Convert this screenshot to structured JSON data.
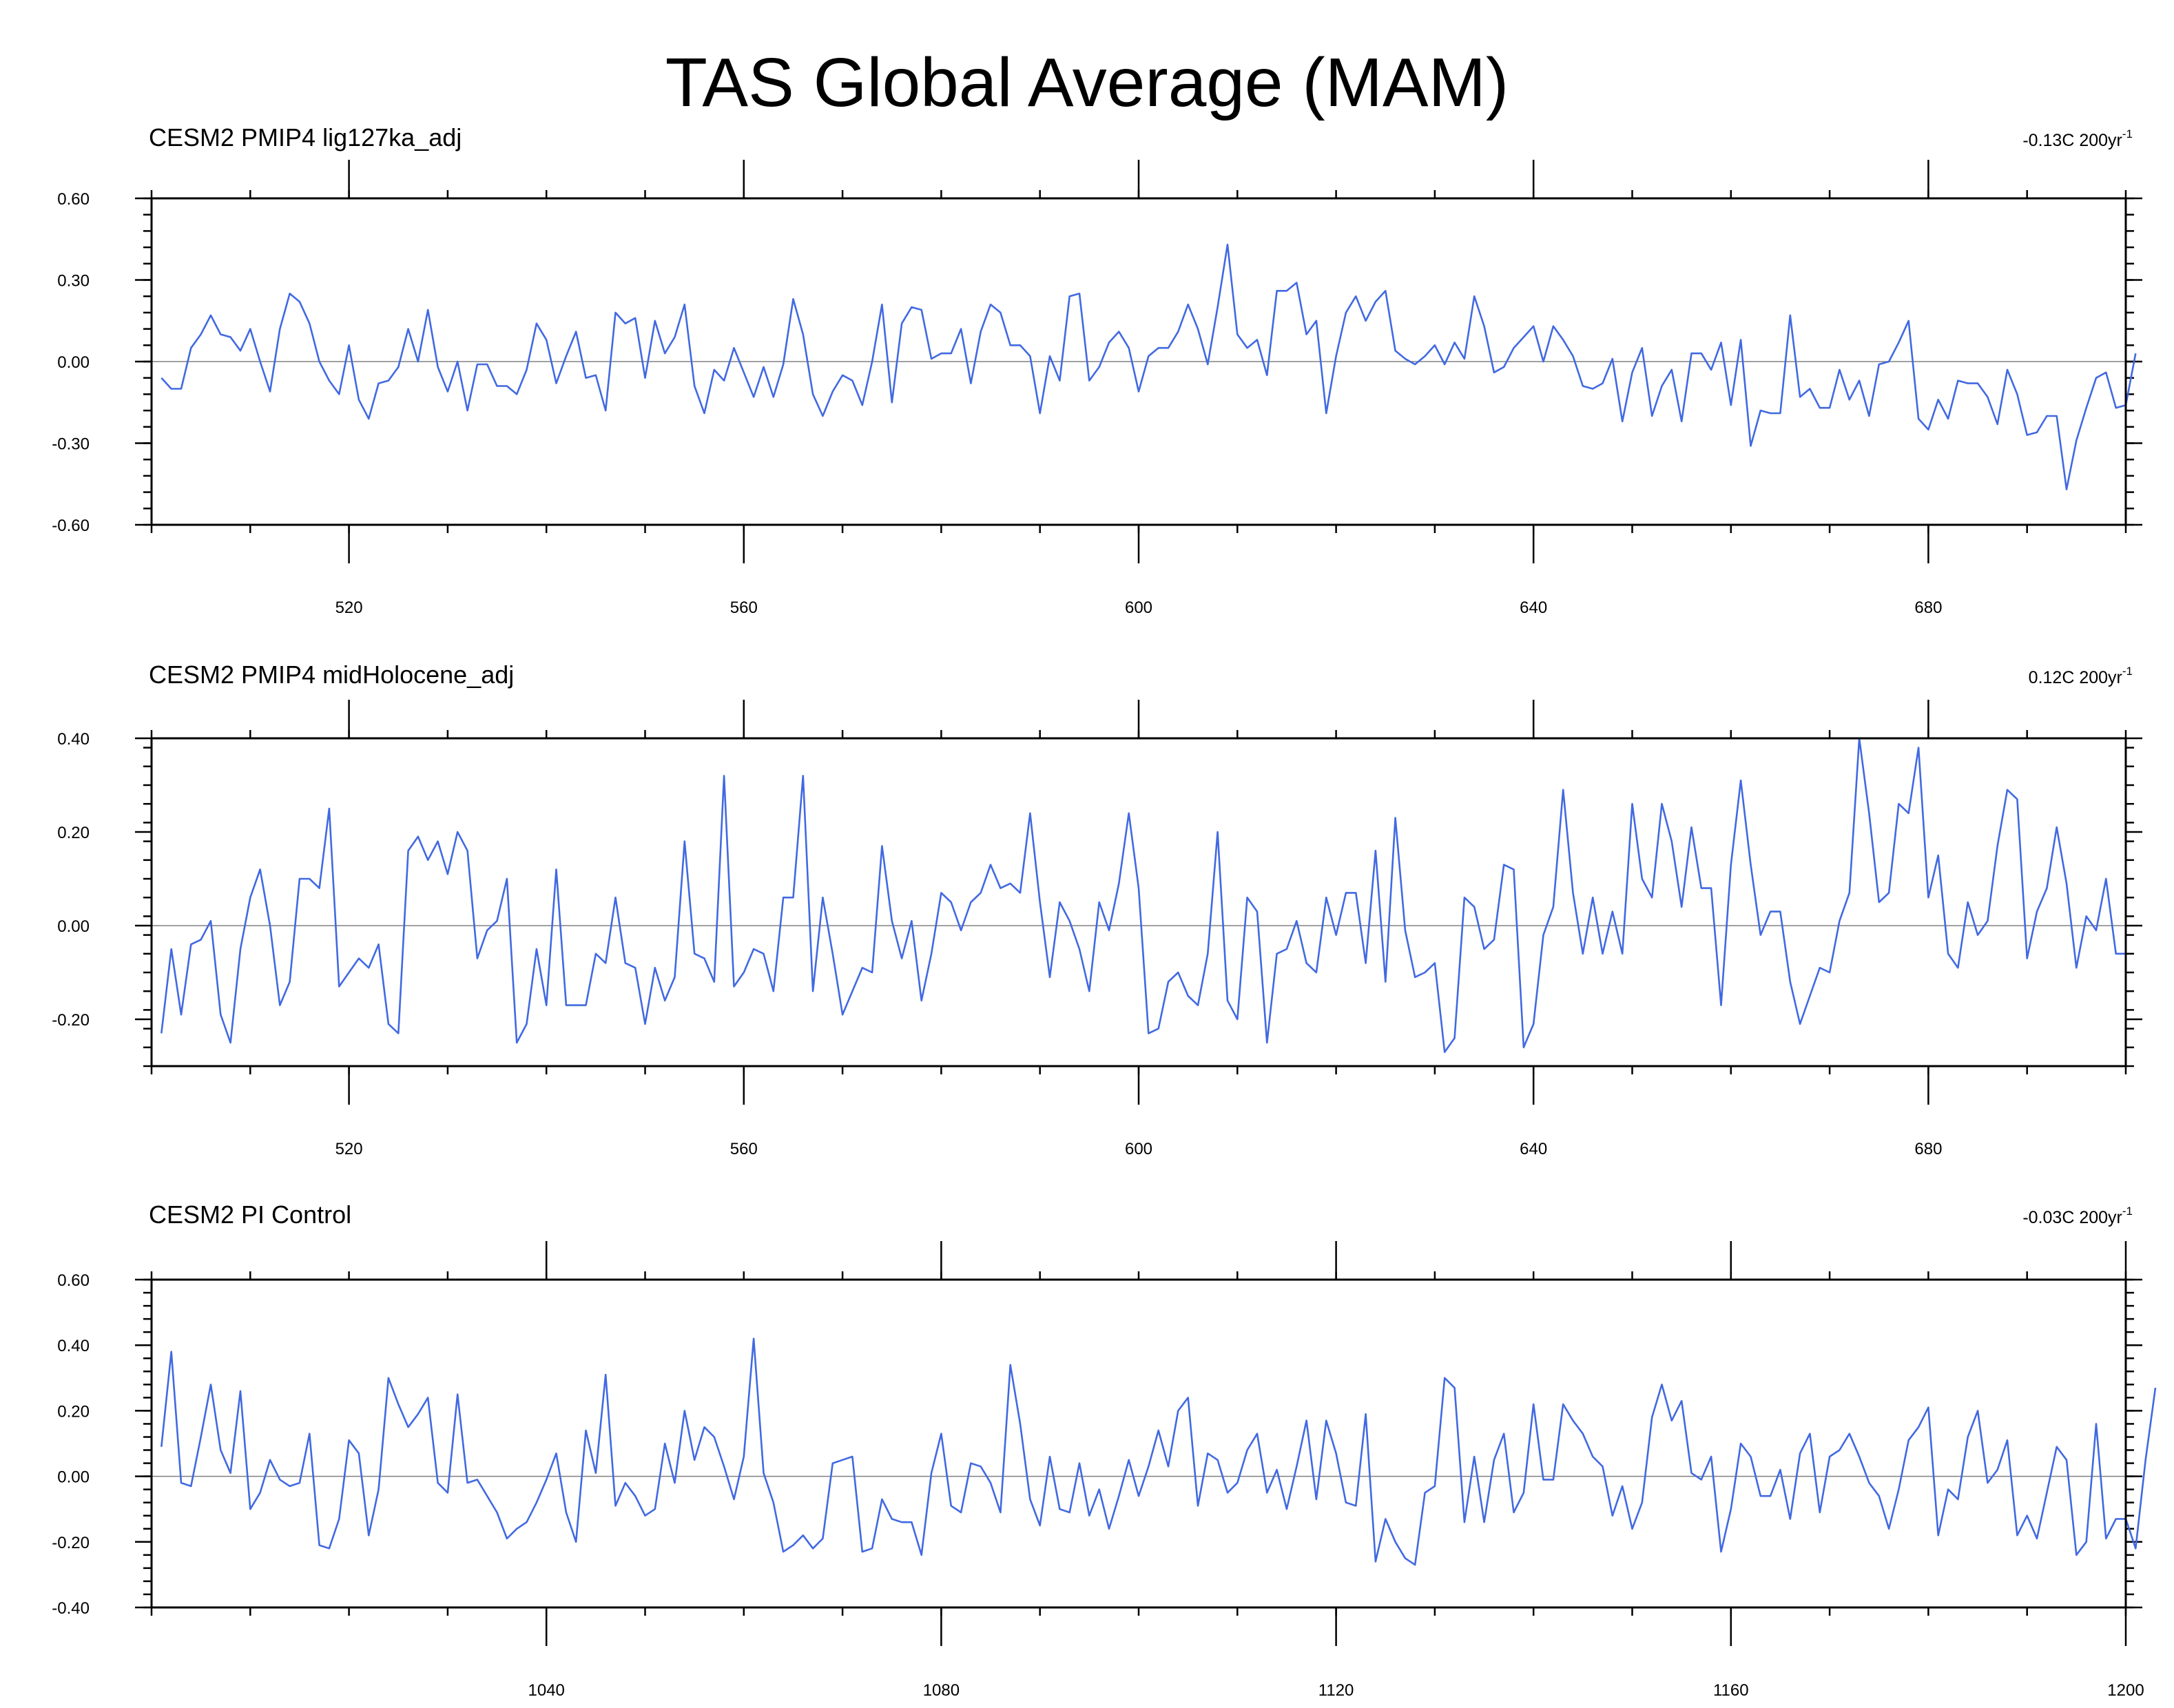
{
  "figure_title": "TAS Global Average (MAM)",
  "chart_data": [
    {
      "type": "line",
      "title": "CESM2 PMIP4 lig127ka_adj",
      "trend": {
        "prefix": "-0.13C 200yr",
        "sup": "-1"
      },
      "xlim": [
        500,
        700
      ],
      "ylim": [
        -0.6,
        0.6
      ],
      "yticks": [
        -0.6,
        -0.3,
        0.0,
        0.3,
        0.6
      ],
      "ytick_labels": [
        "-0.60",
        "-0.30",
        "0.00",
        "0.30",
        "0.60"
      ],
      "xticks": [
        520,
        560,
        600,
        640,
        680
      ],
      "xtick_labels": [
        "520",
        "560",
        "600",
        "640",
        "680"
      ],
      "series": [
        {
          "name": "lig127ka_adj",
          "color": "#4169e1",
          "x_start": 501,
          "x_step": 1,
          "values": [
            -0.06,
            -0.1,
            -0.1,
            0.05,
            0.1,
            0.17,
            0.1,
            0.09,
            0.04,
            0.12,
            0.0,
            -0.11,
            0.12,
            0.25,
            0.22,
            0.14,
            0.0,
            -0.07,
            -0.12,
            0.06,
            -0.14,
            -0.21,
            -0.08,
            -0.07,
            -0.02,
            0.12,
            0.0,
            0.19,
            -0.02,
            -0.11,
            0.0,
            -0.18,
            -0.01,
            -0.01,
            -0.09,
            -0.09,
            -0.12,
            -0.03,
            0.14,
            0.08,
            -0.08,
            0.02,
            0.11,
            -0.06,
            -0.05,
            -0.18,
            0.18,
            0.14,
            0.16,
            -0.06,
            0.15,
            0.03,
            0.09,
            0.21,
            -0.09,
            -0.19,
            -0.03,
            -0.07,
            0.05,
            -0.04,
            -0.13,
            -0.02,
            -0.13,
            -0.01,
            0.23,
            0.1,
            -0.12,
            -0.2,
            -0.11,
            -0.05,
            -0.07,
            -0.16,
            0.0,
            0.21,
            -0.15,
            0.14,
            0.2,
            0.19,
            0.01,
            0.03,
            0.03,
            0.12,
            -0.08,
            0.11,
            0.21,
            0.18,
            0.06,
            0.06,
            0.02,
            -0.19,
            0.02,
            -0.07,
            0.24,
            0.25,
            -0.07,
            -0.02,
            0.07,
            0.11,
            0.05,
            -0.11,
            0.02,
            0.05,
            0.05,
            0.11,
            0.21,
            0.12,
            -0.01,
            0.2,
            0.43,
            0.1,
            0.05,
            0.08,
            -0.05,
            0.26,
            0.26,
            0.29,
            0.1,
            0.15,
            -0.19,
            0.02,
            0.18,
            0.24,
            0.15,
            0.22,
            0.26,
            0.04,
            0.01,
            -0.01,
            0.02,
            0.06,
            -0.01,
            0.07,
            0.01,
            0.24,
            0.13,
            -0.04,
            -0.02,
            0.05,
            0.09,
            0.13,
            0.0,
            0.13,
            0.08,
            0.02,
            -0.09,
            -0.1,
            -0.08,
            0.01,
            -0.22,
            -0.04,
            0.05,
            -0.2,
            -0.09,
            -0.03,
            -0.22,
            0.03,
            0.03,
            -0.03,
            0.07,
            -0.16,
            0.08,
            -0.31,
            -0.18,
            -0.19,
            -0.19,
            0.17,
            -0.13,
            -0.1,
            -0.17,
            -0.17,
            -0.03,
            -0.14,
            -0.07,
            -0.2,
            -0.01,
            0.0,
            0.07,
            0.15,
            -0.21,
            -0.25,
            -0.14,
            -0.21,
            -0.07,
            -0.08,
            -0.08,
            -0.13,
            -0.23,
            -0.03,
            -0.12,
            -0.27,
            -0.26,
            -0.2,
            -0.2,
            -0.47,
            -0.29,
            -0.17,
            -0.06,
            -0.04,
            -0.17,
            -0.16,
            0.03
          ]
        }
      ]
    },
    {
      "type": "line",
      "title": "CESM2 PMIP4 midHolocene_adj",
      "trend": {
        "prefix": "0.12C 200yr",
        "sup": "-1"
      },
      "xlim": [
        500,
        700
      ],
      "ylim": [
        -0.3,
        0.4
      ],
      "yticks": [
        -0.2,
        0.0,
        0.2,
        0.4
      ],
      "ytick_labels": [
        "-0.20",
        "0.00",
        "0.20",
        "0.40"
      ],
      "xticks": [
        520,
        560,
        600,
        640,
        680
      ],
      "xtick_labels": [
        "520",
        "560",
        "600",
        "640",
        "680"
      ],
      "series": [
        {
          "name": "midHolocene_adj",
          "color": "#4169e1",
          "x_start": 501,
          "x_step": 1,
          "values": [
            -0.23,
            -0.05,
            -0.19,
            -0.04,
            -0.03,
            0.01,
            -0.19,
            -0.25,
            -0.05,
            0.06,
            0.12,
            0.0,
            -0.17,
            -0.12,
            0.1,
            0.1,
            0.08,
            0.25,
            -0.13,
            -0.1,
            -0.07,
            -0.09,
            -0.04,
            -0.21,
            -0.23,
            0.16,
            0.19,
            0.14,
            0.18,
            0.11,
            0.2,
            0.16,
            -0.07,
            -0.01,
            0.01,
            0.1,
            -0.25,
            -0.21,
            -0.05,
            -0.17,
            0.12,
            -0.17,
            -0.17,
            -0.17,
            -0.06,
            -0.08,
            0.06,
            -0.08,
            -0.09,
            -0.21,
            -0.09,
            -0.16,
            -0.11,
            0.18,
            -0.06,
            -0.07,
            -0.12,
            0.32,
            -0.13,
            -0.1,
            -0.05,
            -0.06,
            -0.14,
            0.06,
            0.06,
            0.32,
            -0.14,
            0.06,
            -0.06,
            -0.19,
            -0.14,
            -0.09,
            -0.1,
            0.17,
            0.01,
            -0.07,
            0.01,
            -0.16,
            -0.06,
            0.07,
            0.05,
            -0.01,
            0.05,
            0.07,
            0.13,
            0.08,
            0.09,
            0.07,
            0.24,
            0.05,
            -0.11,
            0.05,
            0.01,
            -0.05,
            -0.14,
            0.05,
            -0.01,
            0.09,
            0.24,
            0.08,
            -0.23,
            -0.22,
            -0.12,
            -0.1,
            -0.15,
            -0.17,
            -0.06,
            0.2,
            -0.16,
            -0.2,
            0.06,
            0.03,
            -0.25,
            -0.06,
            -0.05,
            0.01,
            -0.08,
            -0.1,
            0.06,
            -0.02,
            0.07,
            0.07,
            -0.08,
            0.16,
            -0.12,
            0.23,
            -0.01,
            -0.11,
            -0.1,
            -0.08,
            -0.27,
            -0.24,
            0.06,
            0.04,
            -0.05,
            -0.03,
            0.13,
            0.12,
            -0.26,
            -0.21,
            -0.02,
            0.04,
            0.29,
            0.07,
            -0.06,
            0.06,
            -0.06,
            0.03,
            -0.06,
            0.26,
            0.1,
            0.06,
            0.26,
            0.18,
            0.04,
            0.21,
            0.08,
            0.08,
            -0.17,
            0.13,
            0.31,
            0.13,
            -0.02,
            0.03,
            0.03,
            -0.12,
            -0.21,
            -0.15,
            -0.09,
            -0.1,
            0.01,
            0.07,
            0.4,
            0.24,
            0.05,
            0.07,
            0.26,
            0.24,
            0.38,
            0.06,
            0.15,
            -0.06,
            -0.09,
            0.05,
            -0.02,
            0.01,
            0.17,
            0.29,
            0.27,
            -0.07,
            0.03,
            0.08,
            0.21,
            0.09,
            -0.09,
            0.02,
            -0.01,
            0.1,
            -0.06,
            -0.06
          ]
        }
      ]
    },
    {
      "type": "line",
      "title": "CESM2 PI Control",
      "trend": {
        "prefix": "-0.03C 200yr",
        "sup": "-1"
      },
      "xlim": [
        1000,
        1200
      ],
      "ylim": [
        -0.4,
        0.6
      ],
      "yticks": [
        -0.4,
        -0.2,
        0.0,
        0.2,
        0.4,
        0.6
      ],
      "ytick_labels": [
        "-0.40",
        "-0.20",
        "0.00",
        "0.20",
        "0.40",
        "0.60"
      ],
      "xticks": [
        1040,
        1080,
        1120,
        1160,
        1200
      ],
      "xtick_labels": [
        "1040",
        "1080",
        "1120",
        "1160",
        "1200"
      ],
      "series": [
        {
          "name": "PI Control",
          "color": "#4169e1",
          "x_start": 1001,
          "x_step": 1,
          "values": [
            0.09,
            0.38,
            -0.02,
            -0.03,
            0.12,
            0.28,
            0.08,
            0.01,
            0.26,
            -0.1,
            -0.05,
            0.05,
            -0.01,
            -0.03,
            -0.02,
            0.13,
            -0.21,
            -0.22,
            -0.13,
            0.11,
            0.07,
            -0.18,
            -0.04,
            0.3,
            0.22,
            0.15,
            0.19,
            0.24,
            -0.02,
            -0.05,
            0.25,
            -0.02,
            -0.01,
            -0.06,
            -0.11,
            -0.19,
            -0.16,
            -0.14,
            -0.08,
            -0.01,
            0.07,
            -0.11,
            -0.2,
            0.14,
            0.01,
            0.31,
            -0.09,
            -0.02,
            -0.06,
            -0.12,
            -0.1,
            0.1,
            -0.02,
            0.2,
            0.05,
            0.15,
            0.12,
            0.03,
            -0.07,
            0.06,
            0.42,
            0.01,
            -0.08,
            -0.23,
            -0.21,
            -0.18,
            -0.22,
            -0.19,
            0.04,
            0.05,
            0.06,
            -0.23,
            -0.22,
            -0.07,
            -0.13,
            -0.14,
            -0.14,
            -0.24,
            0.01,
            0.13,
            -0.09,
            -0.11,
            0.04,
            0.03,
            -0.02,
            -0.11,
            0.34,
            0.16,
            -0.07,
            -0.15,
            0.06,
            -0.1,
            -0.11,
            0.04,
            -0.12,
            -0.04,
            -0.16,
            -0.06,
            0.05,
            -0.06,
            0.03,
            0.14,
            0.03,
            0.2,
            0.24,
            -0.09,
            0.07,
            0.05,
            -0.05,
            -0.02,
            0.08,
            0.13,
            -0.05,
            0.02,
            -0.1,
            0.03,
            0.17,
            -0.07,
            0.17,
            0.07,
            -0.08,
            -0.09,
            0.19,
            -0.26,
            -0.13,
            -0.2,
            -0.25,
            -0.27,
            -0.05,
            -0.03,
            0.3,
            0.27,
            -0.14,
            0.06,
            -0.14,
            0.05,
            0.13,
            -0.11,
            -0.05,
            0.22,
            -0.01,
            -0.01,
            0.22,
            0.17,
            0.13,
            0.06,
            0.03,
            -0.12,
            -0.03,
            -0.16,
            -0.08,
            0.18,
            0.28,
            0.17,
            0.23,
            0.01,
            -0.01,
            0.06,
            -0.23,
            -0.1,
            0.1,
            0.06,
            -0.06,
            -0.06,
            0.02,
            -0.13,
            0.07,
            0.13,
            -0.11,
            0.06,
            0.08,
            0.13,
            0.06,
            -0.02,
            -0.06,
            -0.16,
            -0.04,
            0.11,
            0.15,
            0.21,
            -0.18,
            -0.04,
            -0.07,
            0.12,
            0.2,
            -0.02,
            0.02,
            0.11,
            -0.18,
            -0.12,
            -0.19,
            -0.05,
            0.09,
            0.05,
            -0.24,
            -0.2,
            0.16,
            -0.19,
            -0.13,
            -0.13,
            -0.22,
            0.05,
            0.27
          ]
        }
      ]
    }
  ]
}
